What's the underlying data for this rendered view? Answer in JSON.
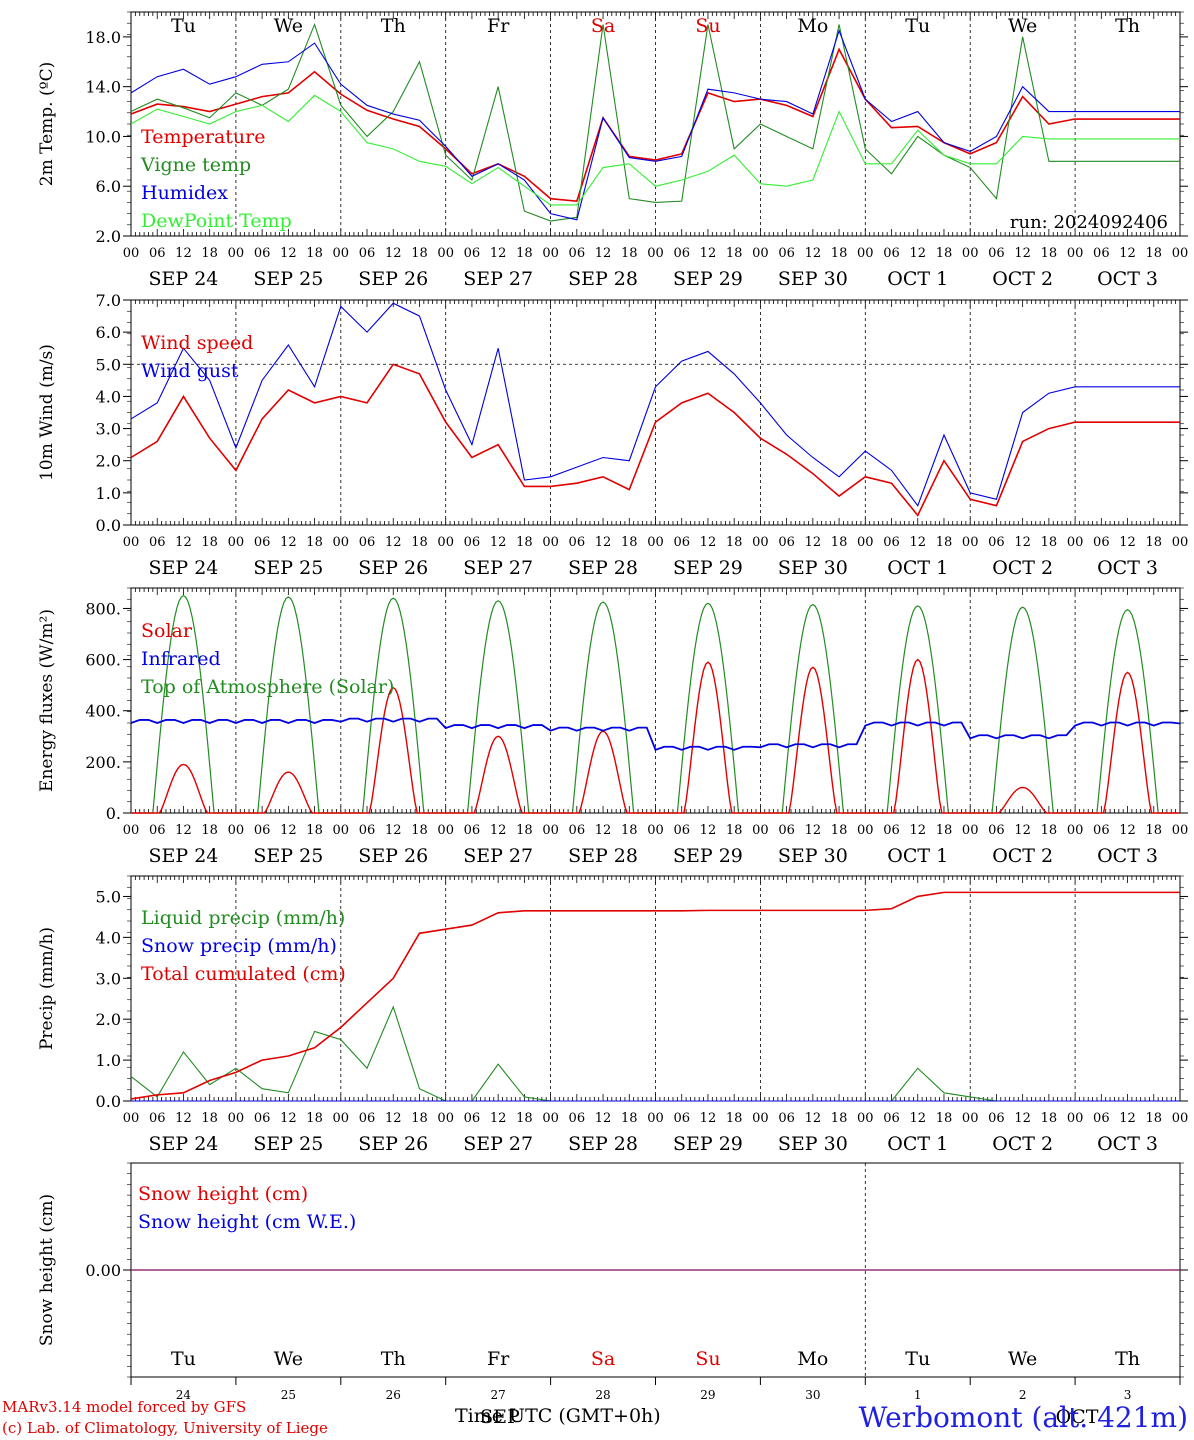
{
  "chart_data": [
    {
      "type": "line",
      "panel": "temperature",
      "ylabel": "2m Temp. (ºC)",
      "yticks": [
        "18.0",
        "14.0",
        "10.0",
        "6.0",
        "2.0"
      ],
      "ylim": [
        2,
        20
      ],
      "annotation": "run: 2024092406",
      "x_hours": [
        0,
        6,
        12,
        18,
        24,
        30,
        36,
        42,
        48,
        54,
        60,
        66,
        72,
        78,
        84,
        90,
        96,
        102,
        108,
        114,
        120,
        126,
        132,
        138,
        144,
        150,
        156,
        162,
        168,
        174,
        180,
        186,
        192,
        198,
        204,
        210,
        216,
        222,
        228,
        234,
        240
      ],
      "series": [
        {
          "name": "Temperature",
          "color": "#e00000",
          "values": [
            11.8,
            12.6,
            12.4,
            12.0,
            12.6,
            13.2,
            13.5,
            15.2,
            13.4,
            12.1,
            11.4,
            10.8,
            9.0,
            7.0,
            7.8,
            6.8,
            5.0,
            4.8,
            11.5,
            8.4,
            8.1,
            8.6,
            13.5,
            12.8,
            13.0,
            12.5,
            11.6,
            17.0,
            13.0,
            10.7,
            10.8,
            9.5,
            8.6,
            9.5,
            13.2,
            11.0,
            11.4,
            11.4,
            11.4,
            11.4,
            11.4
          ]
        },
        {
          "name": "Vigne temp",
          "color": "#228b22",
          "values": [
            12.0,
            13.0,
            12.3,
            11.5,
            13.5,
            12.5,
            13.8,
            19.0,
            12.5,
            10.0,
            12.0,
            16.0,
            8.5,
            6.5,
            14.0,
            4.0,
            3.2,
            3.5,
            19.0,
            5.0,
            4.7,
            4.8,
            19.0,
            9.0,
            11.0,
            10.0,
            9.0,
            19.0,
            9.0,
            7.0,
            10.0,
            8.5,
            7.5,
            5.0,
            18.0,
            8.0,
            8.0,
            8.0,
            8.0,
            8.0,
            8.0
          ]
        },
        {
          "name": "Humidex",
          "color": "#0000e0",
          "values": [
            13.5,
            14.8,
            15.4,
            14.2,
            14.8,
            15.8,
            16.0,
            17.5,
            14.2,
            12.5,
            11.8,
            11.3,
            9.2,
            6.8,
            7.8,
            6.5,
            3.8,
            3.3,
            11.5,
            8.3,
            8.0,
            8.4,
            13.8,
            13.5,
            13.0,
            12.8,
            11.8,
            18.5,
            13.0,
            11.2,
            12.0,
            9.5,
            8.8,
            10.0,
            14.0,
            12.0,
            12.0,
            12.0,
            12.0,
            12.0,
            12.0
          ]
        },
        {
          "name": "DewPoint Temp",
          "color": "#33ee33",
          "values": [
            11.0,
            12.2,
            11.6,
            11.0,
            12.0,
            12.5,
            11.2,
            13.3,
            12.0,
            9.5,
            9.0,
            8.0,
            7.6,
            6.2,
            7.5,
            6.0,
            4.5,
            4.5,
            7.5,
            7.8,
            6.0,
            6.5,
            7.2,
            8.5,
            6.2,
            6.0,
            6.5,
            12.0,
            7.8,
            7.8,
            10.5,
            8.5,
            7.8,
            7.8,
            10.0,
            9.8,
            9.8,
            9.8,
            9.8,
            9.8,
            9.8
          ]
        }
      ]
    },
    {
      "type": "line",
      "panel": "wind",
      "ylabel": "10m Wind (m/s)",
      "yticks": [
        "7.0",
        "6.0",
        "5.0",
        "4.0",
        "3.0",
        "2.0",
        "1.0",
        "0.0"
      ],
      "ylim": [
        0,
        7
      ],
      "x_hours": [
        0,
        6,
        12,
        18,
        24,
        30,
        36,
        42,
        48,
        54,
        60,
        66,
        72,
        78,
        84,
        90,
        96,
        102,
        108,
        114,
        120,
        126,
        132,
        138,
        144,
        150,
        156,
        162,
        168,
        174,
        180,
        186,
        192,
        198,
        204,
        210,
        216,
        222,
        228,
        234,
        240
      ],
      "series": [
        {
          "name": "Wind speed",
          "color": "#e00000",
          "values": [
            2.1,
            2.6,
            4.0,
            2.7,
            1.7,
            3.3,
            4.2,
            3.8,
            4.0,
            3.8,
            5.0,
            4.7,
            3.2,
            2.1,
            2.5,
            1.2,
            1.2,
            1.3,
            1.5,
            1.1,
            3.2,
            3.8,
            4.1,
            3.5,
            2.7,
            2.2,
            1.6,
            0.9,
            1.5,
            1.3,
            0.3,
            2.0,
            0.8,
            0.6,
            2.6,
            3.0,
            3.2,
            3.2,
            3.2,
            3.2,
            3.2
          ]
        },
        {
          "name": "Wind gust",
          "color": "#0000e0",
          "values": [
            3.3,
            3.8,
            5.5,
            4.5,
            2.4,
            4.5,
            5.6,
            4.3,
            6.8,
            6.0,
            6.9,
            6.5,
            4.2,
            2.5,
            5.5,
            1.4,
            1.5,
            1.8,
            2.1,
            2.0,
            4.3,
            5.1,
            5.4,
            4.7,
            3.8,
            2.8,
            2.1,
            1.5,
            2.3,
            1.7,
            0.6,
            2.8,
            1.0,
            0.8,
            3.5,
            4.1,
            4.3,
            4.3,
            4.3,
            4.3,
            4.3
          ]
        }
      ]
    },
    {
      "type": "line",
      "panel": "energy",
      "ylabel": "Energy fluxes (W/m²)",
      "yticks": [
        "800.",
        "600.",
        "400.",
        "200.",
        "0."
      ],
      "ylim": [
        0,
        880
      ],
      "days": 10,
      "series": [
        {
          "name": "Solar",
          "color": "#e00000",
          "daily_peak": [
            190,
            160,
            490,
            300,
            320,
            590,
            570,
            600,
            100,
            550
          ]
        },
        {
          "name": "Infrared",
          "color": "#0000e0",
          "daily_level": [
            360,
            360,
            365,
            340,
            330,
            255,
            265,
            350,
            300,
            350
          ]
        },
        {
          "name": "Top of Atmosphere (Solar)",
          "color": "#228b22",
          "daily_peak": [
            850,
            845,
            840,
            830,
            825,
            820,
            815,
            810,
            805,
            795
          ]
        }
      ]
    },
    {
      "type": "line",
      "panel": "precip",
      "ylabel": "Precip (mm/h)",
      "yticks": [
        "5.0",
        "4.0",
        "3.0",
        "2.0",
        "1.0",
        "0.0"
      ],
      "ylim": [
        0,
        5.5
      ],
      "x_hours": [
        0,
        6,
        12,
        18,
        24,
        30,
        36,
        42,
        48,
        54,
        60,
        66,
        72,
        78,
        84,
        90,
        96,
        102,
        108,
        114,
        120,
        126,
        132,
        138,
        144,
        150,
        156,
        162,
        168,
        174,
        180,
        186,
        192,
        198,
        204,
        210,
        216,
        222,
        228,
        234,
        240
      ],
      "series": [
        {
          "name": "Liquid precip (mm/h)",
          "color": "#228b22",
          "values": [
            0.6,
            0.1,
            1.2,
            0.4,
            0.8,
            0.3,
            0.2,
            1.7,
            1.5,
            0.8,
            2.3,
            0.3,
            0.0,
            0.0,
            0.9,
            0.1,
            0.0,
            0.0,
            0.0,
            0.0,
            0.0,
            0.0,
            0.0,
            0.0,
            0.0,
            0.0,
            0.0,
            0.0,
            0.0,
            0.0,
            0.8,
            0.2,
            0.1,
            0.0,
            0.0,
            0.0,
            0.0,
            0.0,
            0.0,
            0.0,
            0.0
          ]
        },
        {
          "name": "Snow precip (mm/h)",
          "color": "#0000e0",
          "values": [
            0,
            0,
            0,
            0,
            0,
            0,
            0,
            0,
            0,
            0,
            0,
            0,
            0,
            0,
            0,
            0,
            0,
            0,
            0,
            0,
            0,
            0,
            0,
            0,
            0,
            0,
            0,
            0,
            0,
            0,
            0,
            0,
            0,
            0,
            0,
            0,
            0,
            0,
            0,
            0,
            0
          ]
        },
        {
          "name": "Total cumulated (cm)",
          "color": "#e00000",
          "values": [
            0.05,
            0.15,
            0.2,
            0.5,
            0.7,
            1.0,
            1.1,
            1.3,
            1.8,
            2.4,
            3.0,
            4.1,
            4.2,
            4.3,
            4.6,
            4.65,
            4.65,
            4.65,
            4.65,
            4.65,
            4.65,
            4.65,
            4.66,
            4.66,
            4.66,
            4.66,
            4.66,
            4.66,
            4.66,
            4.7,
            5.0,
            5.1,
            5.1,
            5.1,
            5.1,
            5.1,
            5.1,
            5.1,
            5.1,
            5.1,
            5.1
          ]
        }
      ]
    },
    {
      "type": "line",
      "panel": "snow",
      "ylabel": "Snow height (cm)",
      "yticks": [
        "0.00"
      ],
      "ylim": [
        -1,
        1
      ],
      "series": [
        {
          "name": "Snow height (cm)",
          "color": "#e00000",
          "values": [
            0,
            0
          ]
        },
        {
          "name": "Snow height (cm W.E.)",
          "color": "#0000e0",
          "values": [
            0,
            0
          ]
        }
      ]
    }
  ],
  "days_top": [
    "Tu",
    "We",
    "Th",
    "Fr",
    "Sa",
    "Su",
    "Mo",
    "Tu",
    "We",
    "Th"
  ],
  "days_top_red": [
    4,
    5
  ],
  "hour_ticks": [
    "00",
    "06",
    "12",
    "18"
  ],
  "date_labels": [
    "SEP 24",
    "SEP 25",
    "SEP 26",
    "SEP 27",
    "SEP 28",
    "SEP 29",
    "SEP 30",
    "OCT  1",
    "OCT  2",
    "OCT  3"
  ],
  "bottom_days": [
    "Tu",
    "We",
    "Th",
    "Fr",
    "Sa",
    "Su",
    "Mo",
    "Tu",
    "We",
    "Th"
  ],
  "bottom_dates": [
    "24",
    "25",
    "26",
    "27",
    "28",
    "29",
    "30",
    "1",
    "2",
    "3"
  ],
  "bottom_months": [
    "SEP",
    "OCT"
  ],
  "footer": {
    "credit1": "MARv3.14 model forced by GFS",
    "credit2": "(c) Lab. of Climatology, University of Liege",
    "xtitle": "Time UTC (GMT+0h)",
    "station": "Werbomont (alt. 421m)"
  }
}
